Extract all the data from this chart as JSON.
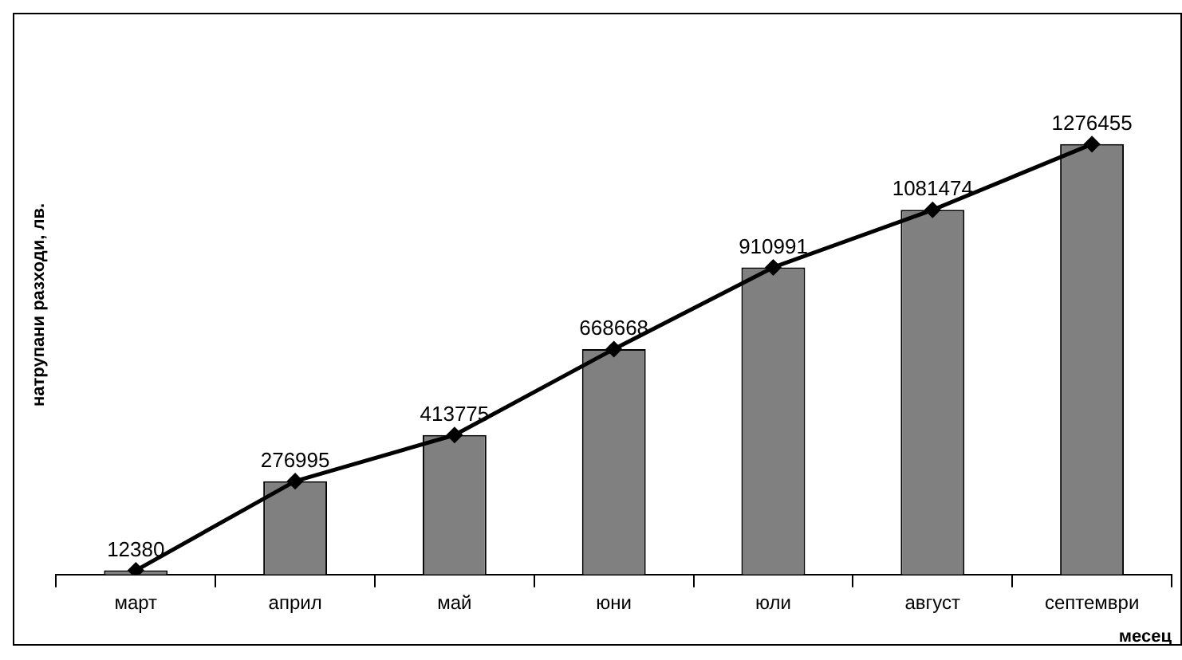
{
  "chart_data": {
    "type": "bar",
    "xlabel": "месец",
    "ylabel": "натрупани разходи, лв.",
    "categories": [
      "март",
      "април",
      "май",
      "юни",
      "юли",
      "август",
      "септември"
    ],
    "series": [
      {
        "color": "#808080",
        "values": [
          12380,
          276995,
          413775,
          668668,
          910991,
          1081474,
          1276455
        ]
      },
      {
        "type": "line",
        "color": "#000000",
        "marker": "diamond",
        "line_style": "solid",
        "values": [
          12380,
          276995,
          413775,
          668668,
          910991,
          1081474,
          1276455
        ],
        "value_labels": [
          "12380",
          "276995",
          "413775",
          "668668",
          "910991",
          "1081474",
          "1276455"
        ]
      }
    ],
    "grid": false,
    "legend": false
  }
}
